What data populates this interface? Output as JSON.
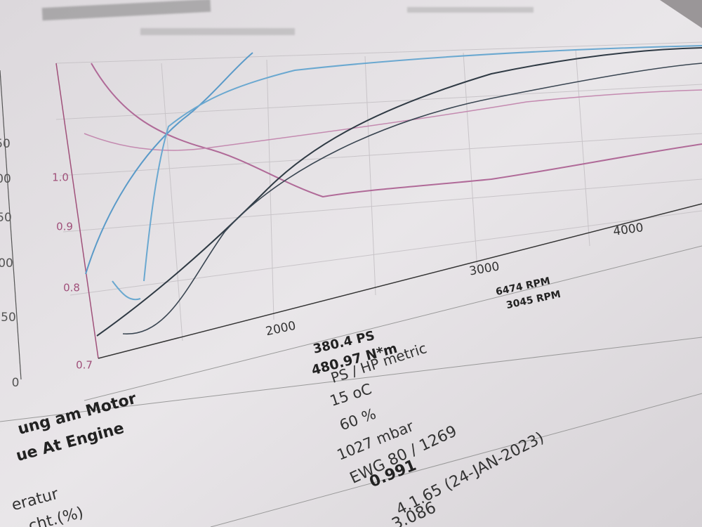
{
  "chart": {
    "left_axis_ticks": [
      "0.7",
      "0.8",
      "0.9",
      "1.0"
    ],
    "outer_axis_ticks": [
      "0",
      "50",
      "00",
      "50",
      "00",
      "50"
    ],
    "x_ticks": [
      "2000",
      "3000",
      "4000"
    ]
  },
  "results": [
    {
      "peak": "380.4 PS",
      "rpm": "6474 RPM"
    },
    {
      "peak": "480.97 N*m",
      "rpm": "3045 RPM"
    }
  ],
  "labels": [
    "ung am Motor",
    "ue At Engine",
    "eratur",
    "cht.(%)"
  ],
  "values": [
    "PS / HP metric",
    "15 oC",
    "60 %",
    "1027 mbar",
    "EWG 80 / 1269",
    "0.991",
    "4.1.65 (24-JAN-2023)",
    "3.086"
  ]
}
